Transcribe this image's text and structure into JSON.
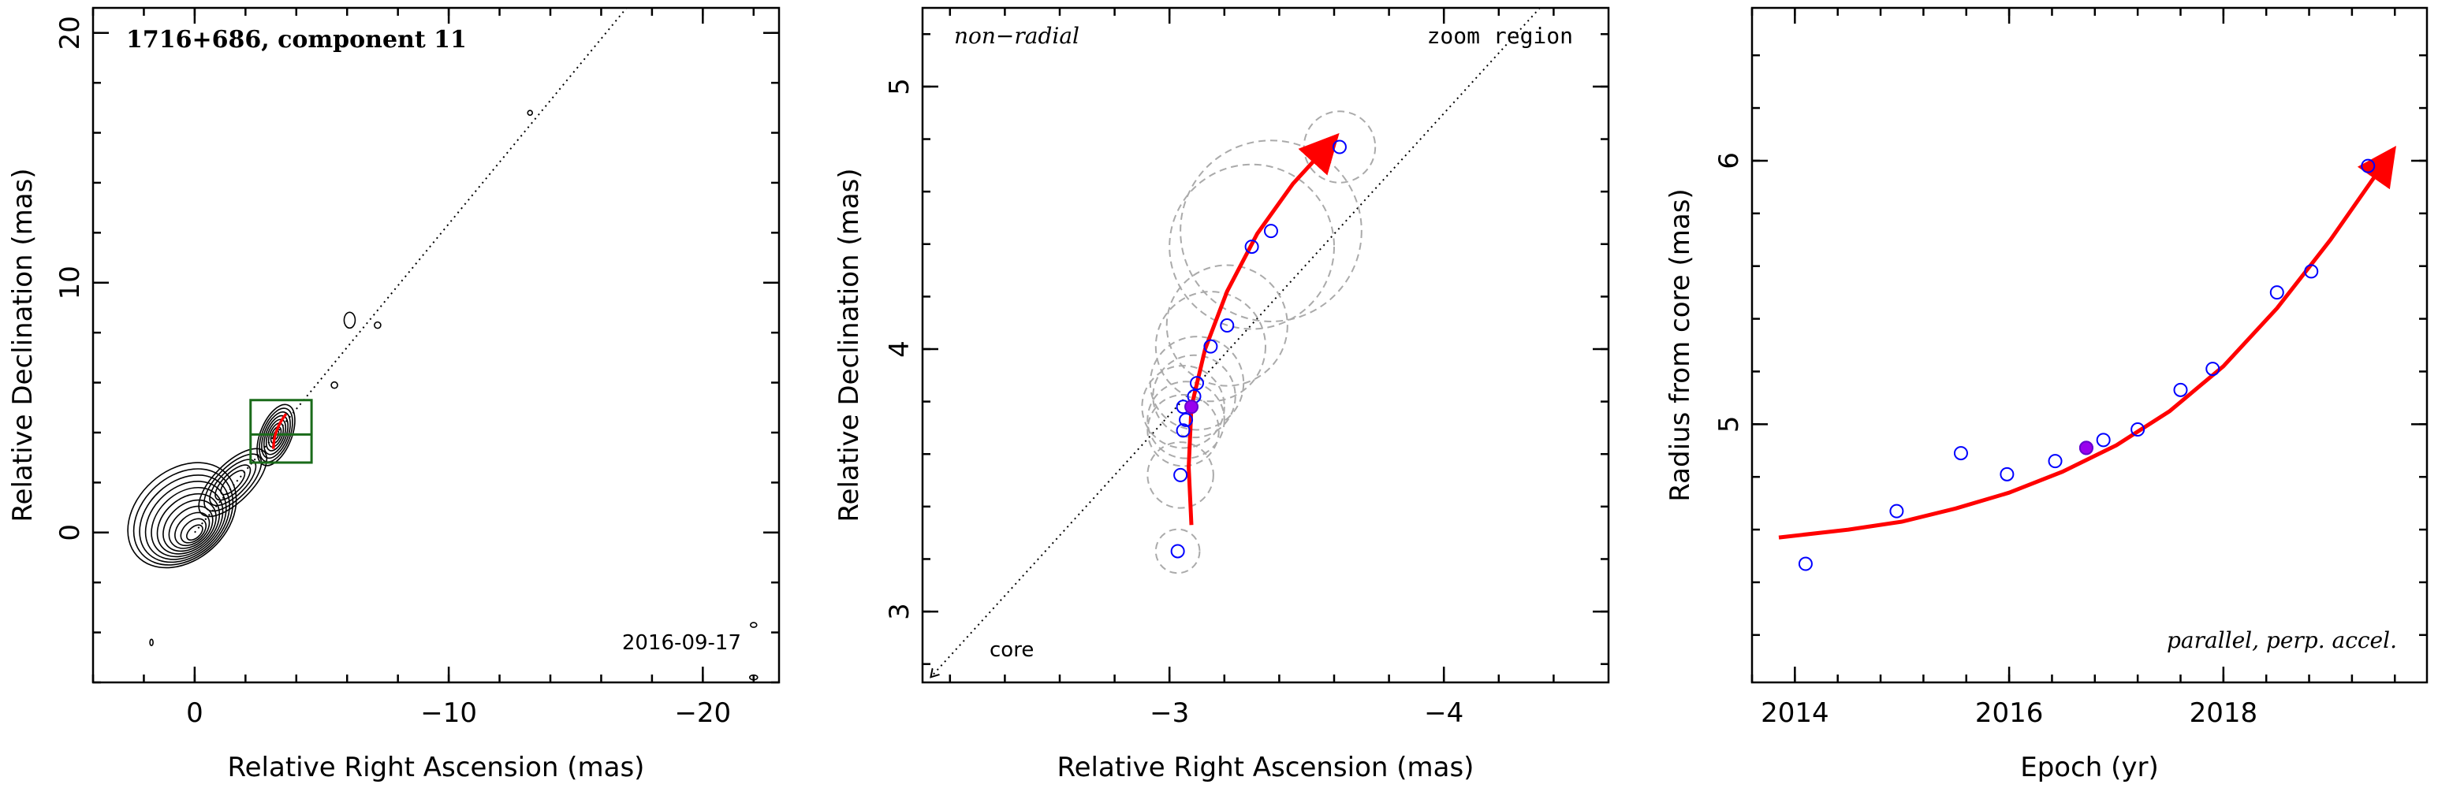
{
  "chart_data": [
    {
      "type": "contour",
      "title": "1716+686, component 11",
      "xlabel": "Relative Right Ascension (mas)",
      "ylabel": "Relative Declination (mas)",
      "xlim": [
        4,
        -23
      ],
      "ylim": [
        -6,
        21
      ],
      "x_ticks": [
        0,
        -10,
        -20
      ],
      "x_tick_labels": [
        "0",
        "−10",
        "−20"
      ],
      "y_ticks": [
        0,
        10,
        20
      ],
      "y_tick_labels": [
        "0",
        "10",
        "20"
      ],
      "date_label": "2016-09-17",
      "jet_axis": [
        [
          0,
          0
        ],
        [
          -17,
          21
        ]
      ],
      "zoom_box": {
        "x": [
          -2.2,
          -4.6
        ],
        "y": [
          2.8,
          5.3
        ]
      },
      "colors": {
        "box": "#1a6b1a",
        "track": "#ff0000"
      }
    },
    {
      "type": "scatter",
      "xlabel": "Relative Right Ascension (mas)",
      "ylabel": "Relative Declination (mas)",
      "xlim": [
        -2.1,
        -4.6
      ],
      "ylim": [
        2.73,
        5.3
      ],
      "x_ticks": [
        -3,
        -4
      ],
      "x_tick_labels": [
        "−3",
        "−4"
      ],
      "y_ticks": [
        3,
        4,
        5
      ],
      "y_tick_labels": [
        "3",
        "4",
        "5"
      ],
      "annotations": {
        "top_left": "non−radial",
        "top_right": "zoom region",
        "core": "core"
      },
      "points": [
        {
          "x": -3.03,
          "y": 3.23,
          "r": 0.08
        },
        {
          "x": -3.04,
          "y": 3.52,
          "r": 0.12
        },
        {
          "x": -3.05,
          "y": 3.69,
          "r": 0.13
        },
        {
          "x": -3.06,
          "y": 3.73,
          "r": 0.14
        },
        {
          "x": -3.05,
          "y": 3.78,
          "r": 0.15
        },
        {
          "x": -3.09,
          "y": 3.82,
          "r": 0.15
        },
        {
          "x": -3.1,
          "y": 3.87,
          "r": 0.17
        },
        {
          "x": -3.15,
          "y": 4.01,
          "r": 0.2
        },
        {
          "x": -3.21,
          "y": 4.09,
          "r": 0.22
        },
        {
          "x": -3.3,
          "y": 4.39,
          "r": 0.3
        },
        {
          "x": -3.37,
          "y": 4.45,
          "r": 0.33
        },
        {
          "x": -3.62,
          "y": 4.77,
          "r": 0.13
        }
      ],
      "highlight": {
        "x": -3.08,
        "y": 3.78
      },
      "track": {
        "x": [
          -3.08,
          -3.07,
          -3.08,
          -3.13,
          -3.21,
          -3.32,
          -3.45,
          -3.59
        ],
        "y": [
          3.33,
          3.55,
          3.78,
          4.0,
          4.22,
          4.44,
          4.63,
          4.79
        ]
      },
      "colors": {
        "points": "#0000ff",
        "track": "#ff0000",
        "circles": "#aaaaaa"
      }
    },
    {
      "type": "scatter",
      "xlabel": "Epoch (yr)",
      "ylabel": "Radius from core (mas)",
      "xlim": [
        2013.6,
        2019.9
      ],
      "ylim": [
        4.02,
        6.58
      ],
      "x_ticks": [
        2014,
        2016,
        2018
      ],
      "x_tick_labels": [
        "2014",
        "2016",
        "2018"
      ],
      "y_ticks": [
        5,
        6
      ],
      "y_tick_labels": [
        "5",
        "6"
      ],
      "annotation": "parallel, perp. accel.",
      "points": [
        {
          "x": 2014.1,
          "y": 4.47
        },
        {
          "x": 2014.95,
          "y": 4.67
        },
        {
          "x": 2015.55,
          "y": 4.89
        },
        {
          "x": 2015.98,
          "y": 4.81
        },
        {
          "x": 2016.43,
          "y": 4.86
        },
        {
          "x": 2016.72,
          "y": 4.91
        },
        {
          "x": 2016.88,
          "y": 4.94
        },
        {
          "x": 2017.2,
          "y": 4.98
        },
        {
          "x": 2017.6,
          "y": 5.13
        },
        {
          "x": 2017.9,
          "y": 5.21
        },
        {
          "x": 2018.5,
          "y": 5.5
        },
        {
          "x": 2018.82,
          "y": 5.58
        },
        {
          "x": 2019.35,
          "y": 5.98
        }
      ],
      "highlight": {
        "x": 2016.72,
        "y": 4.91
      },
      "fit": {
        "x": [
          2013.85,
          2014.5,
          2015,
          2015.5,
          2016,
          2016.5,
          2017,
          2017.5,
          2018,
          2018.5,
          2019,
          2019.55
        ],
        "y": [
          4.57,
          4.6,
          4.63,
          4.68,
          4.74,
          4.82,
          4.92,
          5.05,
          5.22,
          5.44,
          5.7,
          6.02
        ]
      },
      "colors": {
        "points": "#0000ff",
        "fit": "#ff0000"
      }
    }
  ]
}
